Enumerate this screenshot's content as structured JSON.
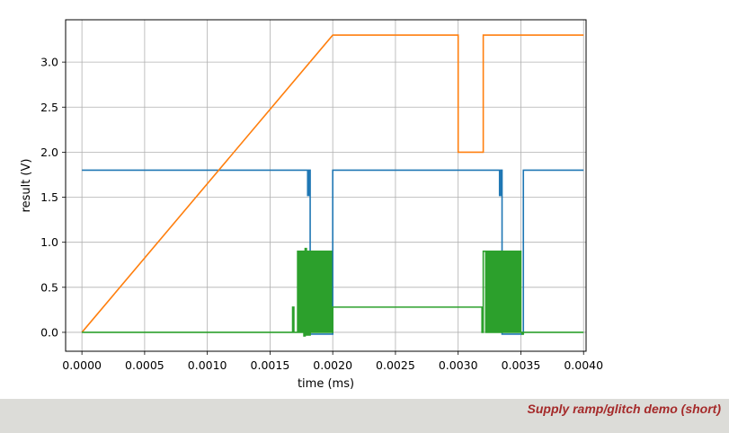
{
  "chart_data": {
    "type": "line",
    "title": "",
    "xlabel": "time (ms)",
    "ylabel": "result (V)",
    "xlim": [
      -0.00013,
      0.00402
    ],
    "ylim": [
      -0.21,
      3.47
    ],
    "grid": true,
    "legend": "none",
    "x_ticks": [
      "0.0000",
      "0.0005",
      "0.0010",
      "0.0015",
      "0.0020",
      "0.0025",
      "0.0030",
      "0.0035",
      "0.0040"
    ],
    "x_tick_values": [
      0,
      0.0005,
      0.001,
      0.0015,
      0.002,
      0.0025,
      0.003,
      0.0035,
      0.004
    ],
    "y_ticks": [
      "0.0",
      "0.5",
      "1.0",
      "1.5",
      "2.0",
      "2.5",
      "3.0"
    ],
    "y_tick_values": [
      0,
      0.5,
      1.0,
      1.5,
      2.0,
      2.5,
      3.0
    ],
    "series": [
      {
        "color": "#1f77b4",
        "x": [
          0,
          0.0018,
          0.0018,
          0.00181,
          0.00181,
          0.00182,
          0.00182,
          0.002,
          0.002,
          0.00333,
          0.00333,
          0.00334,
          0.00334,
          0.00335,
          0.00335,
          0.00351,
          0.00351,
          0.00352,
          0.00352,
          0.004
        ],
        "y": [
          1.8,
          1.8,
          1.52,
          1.52,
          1.8,
          1.8,
          -0.02,
          -0.02,
          1.8,
          1.8,
          1.52,
          1.52,
          1.8,
          1.8,
          -0.02,
          -0.02,
          -0.015,
          -0.015,
          1.8,
          1.8
        ]
      },
      {
        "color": "#ff7f0e",
        "x": [
          0,
          0.002,
          0.003,
          0.003,
          0.0032,
          0.0032,
          0.004
        ],
        "y": [
          0,
          3.3,
          3.3,
          2.0,
          2.0,
          3.3,
          3.3
        ]
      },
      {
        "color": "#2ca02c",
        "x": [
          0,
          0.00168,
          0.00168,
          0.00169,
          0.00169,
          0.00172,
          0.00172,
          0.00173,
          0.00173,
          0.00174,
          0.00174,
          0.00175,
          0.00175,
          0.00176,
          0.00176,
          0.00177,
          0.00177,
          0.00178,
          0.00178,
          0.00179,
          0.00179,
          0.0018,
          0.0018,
          0.00181,
          0.00181,
          0.00182,
          0.00182,
          0.00183,
          0.00183,
          0.00184,
          0.00184,
          0.00185,
          0.00185,
          0.00186,
          0.00186,
          0.00187,
          0.00187,
          0.00188,
          0.00188,
          0.00189,
          0.00189,
          0.0019,
          0.0019,
          0.00191,
          0.00191,
          0.00192,
          0.00192,
          0.00193,
          0.00193,
          0.00194,
          0.00194,
          0.00195,
          0.00195,
          0.00196,
          0.00196,
          0.00197,
          0.00197,
          0.00198,
          0.00198,
          0.00199,
          0.00199,
          0.002,
          0.002,
          0.00319,
          0.00319,
          0.0032,
          0.0032,
          0.00322,
          0.00322,
          0.00323,
          0.00323,
          0.00324,
          0.00324,
          0.00325,
          0.00325,
          0.00326,
          0.00326,
          0.00327,
          0.00327,
          0.00328,
          0.00328,
          0.00329,
          0.00329,
          0.0033,
          0.0033,
          0.00331,
          0.00331,
          0.00332,
          0.00332,
          0.00333,
          0.00333,
          0.00334,
          0.00334,
          0.00335,
          0.00335,
          0.00336,
          0.00336,
          0.00337,
          0.00337,
          0.00338,
          0.00338,
          0.00339,
          0.00339,
          0.0034,
          0.0034,
          0.00341,
          0.00341,
          0.00342,
          0.00342,
          0.00343,
          0.00343,
          0.00344,
          0.00344,
          0.00345,
          0.00345,
          0.00346,
          0.00346,
          0.00347,
          0.00347,
          0.00348,
          0.00348,
          0.00349,
          0.00349,
          0.0035,
          0.0035,
          0.00351,
          0.00351,
          0.00352,
          0.00352,
          0.004
        ],
        "y": [
          0,
          0,
          0.28,
          0.28,
          0,
          0,
          0.9,
          0.9,
          0,
          0,
          0.9,
          0.9,
          0,
          0,
          0.9,
          0.9,
          -0.04,
          -0.04,
          0.93,
          0.93,
          -0.03,
          -0.03,
          0.9,
          0.9,
          -0.03,
          -0.03,
          0.9,
          0.9,
          0,
          0,
          0.9,
          0.9,
          0,
          0,
          0.9,
          0.9,
          0,
          0,
          0.9,
          0.9,
          0,
          0,
          0.9,
          0.9,
          0,
          0,
          0.9,
          0.9,
          0,
          0,
          0.9,
          0.9,
          0,
          0,
          0.9,
          0.9,
          0,
          0,
          0.9,
          0.9,
          0,
          0,
          0.28,
          0.28,
          0,
          0,
          0.9,
          0.9,
          0,
          0,
          0.9,
          0.9,
          0,
          0,
          0.9,
          0.9,
          0,
          0,
          0.9,
          0.9,
          0,
          0,
          0.9,
          0.9,
          0,
          0,
          0.9,
          0.9,
          0,
          0,
          0.9,
          0.9,
          0,
          0,
          0.9,
          0.9,
          0,
          0,
          0.9,
          0.9,
          0,
          0,
          0.9,
          0.9,
          0,
          0,
          0.9,
          0.9,
          0,
          0,
          0.9,
          0.9,
          0,
          0,
          0.9,
          0.9,
          0,
          0,
          0.9,
          0.9,
          0,
          0,
          0.9,
          0.9,
          0,
          0,
          -0.02,
          -0.02,
          0,
          0
        ]
      }
    ]
  },
  "caption": "Supply ramp/glitch demo (short)"
}
